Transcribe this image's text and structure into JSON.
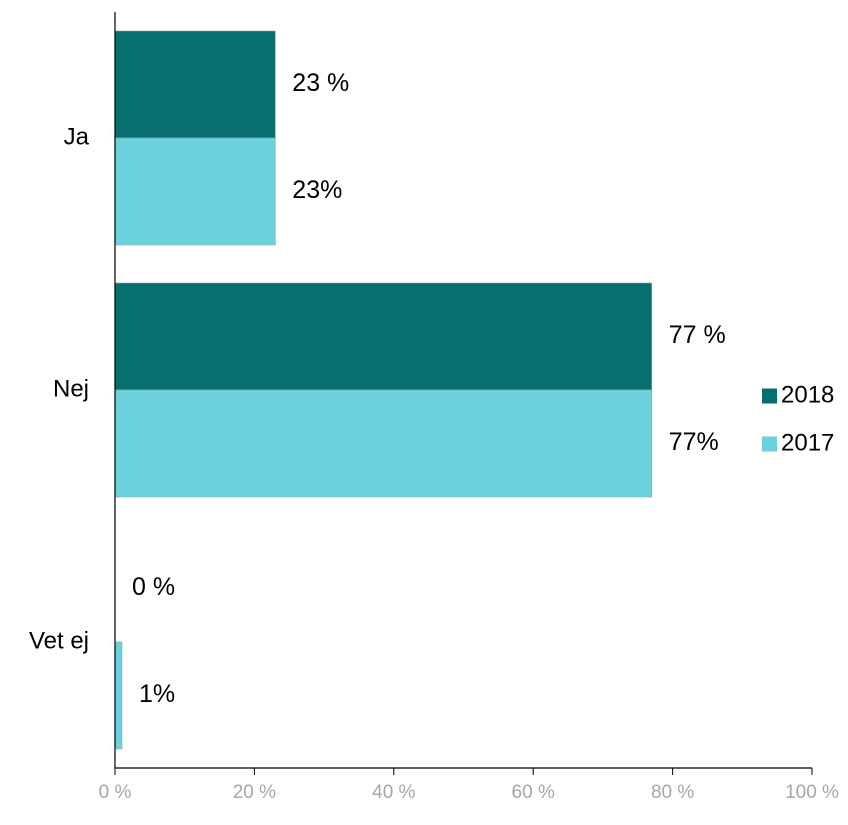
{
  "chart_data": {
    "type": "bar",
    "orientation": "horizontal",
    "categories": [
      "Ja",
      "Nej",
      "Vet ej"
    ],
    "series": [
      {
        "name": "2018",
        "values": [
          23,
          77,
          0
        ],
        "labels": [
          "23 %",
          "77 %",
          "0 %"
        ],
        "color": "#076f6f"
      },
      {
        "name": "2017",
        "values": [
          23,
          77,
          1
        ],
        "labels": [
          "23%",
          "77%",
          "1%"
        ],
        "color": "#6bd2dd"
      }
    ],
    "x_ticks": [
      "0 %",
      "20 %",
      "40 %",
      "60 %",
      "80 %",
      "100 %"
    ],
    "xlim": [
      0,
      100
    ],
    "grid": false,
    "legend_position": "right"
  }
}
